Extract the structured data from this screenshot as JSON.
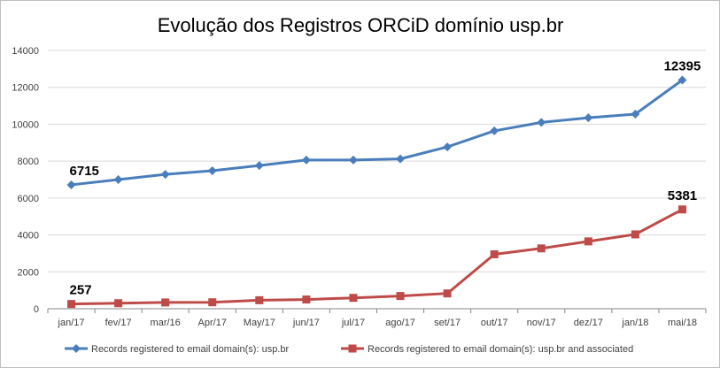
{
  "chart_data": {
    "type": "line",
    "title": "Evolução dos Registros ORCiD domínio usp.br",
    "categories": [
      "jan/17",
      "fev/17",
      "mar/16",
      "Apr/17",
      "May/17",
      "jun/17",
      "jul/17",
      "ago/17",
      "set/17",
      "out/17",
      "nov/17",
      "dez/17",
      "jan/18",
      "mai/18"
    ],
    "ylim": [
      0,
      14000
    ],
    "yticks": [
      0,
      2000,
      4000,
      6000,
      8000,
      10000,
      12000,
      14000
    ],
    "grid": true,
    "legend_position": "bottom",
    "series": [
      {
        "name": "Records registered to email domain(s): usp.br",
        "color": "#4a7ebb",
        "marker": "diamond",
        "values": [
          6715,
          7000,
          7280,
          7480,
          7760,
          8060,
          8060,
          8120,
          8770,
          9640,
          10100,
          10350,
          10550,
          12395
        ],
        "labels": [
          {
            "index": 0,
            "text": "6715"
          },
          {
            "index": 13,
            "text": "12395"
          }
        ]
      },
      {
        "name": "Records registered to email domain(s): usp.br and associated",
        "color": "#be4b48",
        "marker": "square",
        "values": [
          257,
          300,
          340,
          350,
          460,
          500,
          590,
          690,
          830,
          2950,
          3270,
          3650,
          4030,
          5381
        ],
        "labels": [
          {
            "index": 0,
            "text": "257"
          },
          {
            "index": 13,
            "text": "5381"
          }
        ]
      }
    ]
  }
}
